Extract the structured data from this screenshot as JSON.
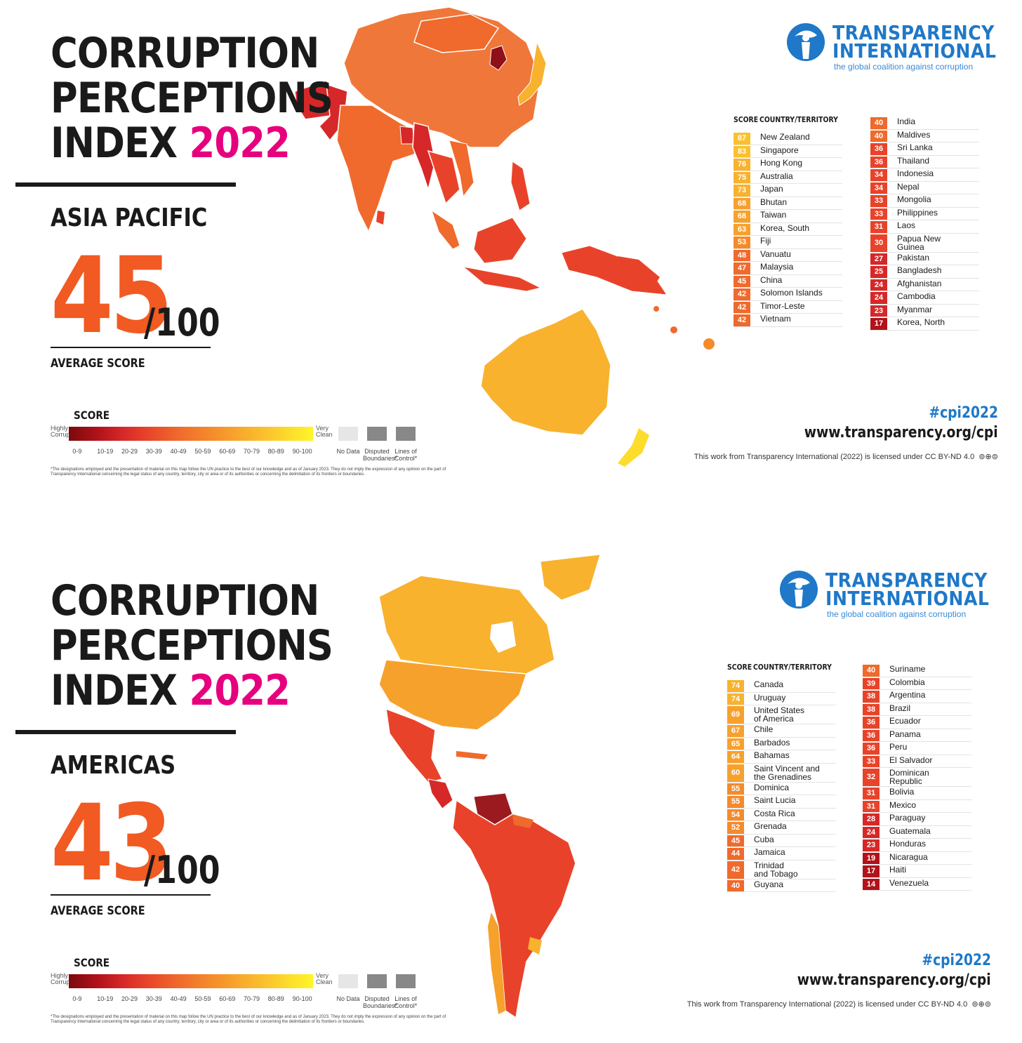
{
  "panels": [
    {
      "title_line1": "CORRUPTION",
      "title_line2": "PERCEPTIONS",
      "title_line3_prefix": "INDEX",
      "title_year": "2022",
      "region": "ASIA PACIFIC",
      "average_score": "45",
      "score_max": "/100",
      "average_label": "AVERAGE SCORE",
      "legend": {
        "title": "SCORE",
        "low_label": "Highly Corrupt",
        "high_label": "Very Clean",
        "ticks": [
          "0-9",
          "10-19",
          "20-29",
          "30-39",
          "40-49",
          "50-59",
          "60-69",
          "70-79",
          "80-89",
          "90-100"
        ],
        "no_data": "No Data",
        "disputed": "Disputed Boundaries*",
        "lines_of_control": "Lines of Control*",
        "footnote": "*The designations employed and the presentation of material on this map follow the UN practice to the best of our knowledge and as of January 2023. They do not imply the expression of any opinion on the part of Transparency International concerning the legal status of any country, territory, city or area or of its authorities or concerning the delimitation of its frontiers or boundaries."
      },
      "logo_line1": "TRANSPARENCY",
      "logo_line2": "INTERNATIONAL",
      "logo_tagline": "the global coalition against corruption",
      "col_score_header": "SCORE",
      "col_country_header": "COUNTRY/TERRITORY",
      "left_column": [
        {
          "score": "87",
          "name": "New Zealand",
          "color": "#fbc02d"
        },
        {
          "score": "83",
          "name": "Singapore",
          "color": "#fbc02d"
        },
        {
          "score": "76",
          "name": "Hong Kong",
          "color": "#f8b22e"
        },
        {
          "score": "75",
          "name": "Australia",
          "color": "#f8b22e"
        },
        {
          "score": "73",
          "name": "Japan",
          "color": "#f8b22e"
        },
        {
          "score": "68",
          "name": "Bhutan",
          "color": "#f7a12d"
        },
        {
          "score": "68",
          "name": "Taiwan",
          "color": "#f7a12d"
        },
        {
          "score": "63",
          "name": "Korea, South",
          "color": "#f7a12d"
        },
        {
          "score": "53",
          "name": "Fiji",
          "color": "#f58a2b"
        },
        {
          "score": "48",
          "name": "Vanuatu",
          "color": "#ef6a2c"
        },
        {
          "score": "47",
          "name": "Malaysia",
          "color": "#ef6a2c"
        },
        {
          "score": "45",
          "name": "China",
          "color": "#ef6a2c"
        },
        {
          "score": "42",
          "name": "Solomon Islands",
          "color": "#ef6a2c"
        },
        {
          "score": "42",
          "name": "Timor-Leste",
          "color": "#ef6a2c"
        },
        {
          "score": "42",
          "name": "Vietnam",
          "color": "#ef6a2c"
        }
      ],
      "right_column": [
        {
          "score": "40",
          "name": "India",
          "color": "#ef6a2c"
        },
        {
          "score": "40",
          "name": "Maldives",
          "color": "#ef6a2c"
        },
        {
          "score": "36",
          "name": "Sri Lanka",
          "color": "#e8432a"
        },
        {
          "score": "36",
          "name": "Thailand",
          "color": "#e8432a"
        },
        {
          "score": "34",
          "name": "Indonesia",
          "color": "#e8432a"
        },
        {
          "score": "34",
          "name": "Nepal",
          "color": "#e8432a"
        },
        {
          "score": "33",
          "name": "Mongolia",
          "color": "#e8432a"
        },
        {
          "score": "33",
          "name": "Philippines",
          "color": "#e8432a"
        },
        {
          "score": "31",
          "name": "Laos",
          "color": "#e8432a"
        },
        {
          "score": "30",
          "name": "Papua New\nGuinea",
          "color": "#e8432a"
        },
        {
          "score": "27",
          "name": "Pakistan",
          "color": "#d62828"
        },
        {
          "score": "25",
          "name": "Bangladesh",
          "color": "#d62828"
        },
        {
          "score": "24",
          "name": "Afghanistan",
          "color": "#d62828"
        },
        {
          "score": "24",
          "name": "Cambodia",
          "color": "#d62828"
        },
        {
          "score": "23",
          "name": "Myanmar",
          "color": "#d62828"
        },
        {
          "score": "17",
          "name": "Korea, North",
          "color": "#b2121a"
        }
      ],
      "hashtag": "#cpi2022",
      "url": "www.transparency.org/cpi",
      "license": "This work from Transparency International (2022) is licensed under CC BY-ND 4.0"
    },
    {
      "title_line1": "CORRUPTION",
      "title_line2": "PERCEPTIONS",
      "title_line3_prefix": "INDEX",
      "title_year": "2022",
      "region": "AMERICAS",
      "average_score": "43",
      "score_max": "/100",
      "average_label": "AVERAGE SCORE",
      "legend": {
        "title": "SCORE",
        "low_label": "Highly Corrupt",
        "high_label": "Very Clean",
        "ticks": [
          "0-9",
          "10-19",
          "20-29",
          "30-39",
          "40-49",
          "50-59",
          "60-69",
          "70-79",
          "80-89",
          "90-100"
        ],
        "no_data": "No Data",
        "disputed": "Disputed Boundaries*",
        "lines_of_control": "Lines of Control*",
        "footnote": "*The designations employed and the presentation of material on this map follow the UN practice to the best of our knowledge and as of January 2023. They do not imply the expression of any opinion on the part of Transparency International concerning the legal status of any country, territory, city or area or of its authorities or concerning the delimitation of its frontiers or boundaries."
      },
      "logo_line1": "TRANSPARENCY",
      "logo_line2": "INTERNATIONAL",
      "logo_tagline": "the global coalition against corruption",
      "col_score_header": "SCORE",
      "col_country_header": "COUNTRY/TERRITORY",
      "left_column": [
        {
          "score": "74",
          "name": "Canada",
          "color": "#f8b22e"
        },
        {
          "score": "74",
          "name": "Uruguay",
          "color": "#f8b22e"
        },
        {
          "score": "69",
          "name": "United States\nof America",
          "color": "#f7a12d"
        },
        {
          "score": "67",
          "name": "Chile",
          "color": "#f7a12d"
        },
        {
          "score": "65",
          "name": "Barbados",
          "color": "#f7a12d"
        },
        {
          "score": "64",
          "name": "Bahamas",
          "color": "#f7a12d"
        },
        {
          "score": "60",
          "name": "Saint Vincent and\nthe Grenadines",
          "color": "#f7a12d"
        },
        {
          "score": "55",
          "name": "Dominica",
          "color": "#f58a2b"
        },
        {
          "score": "55",
          "name": "Saint Lucia",
          "color": "#f58a2b"
        },
        {
          "score": "54",
          "name": "Costa Rica",
          "color": "#f58a2b"
        },
        {
          "score": "52",
          "name": "Grenada",
          "color": "#f58a2b"
        },
        {
          "score": "45",
          "name": "Cuba",
          "color": "#ef6a2c"
        },
        {
          "score": "44",
          "name": "Jamaica",
          "color": "#ef6a2c"
        },
        {
          "score": "42",
          "name": "Trinidad\nand Tobago",
          "color": "#ef6a2c"
        },
        {
          "score": "40",
          "name": "Guyana",
          "color": "#ef6a2c"
        }
      ],
      "right_column": [
        {
          "score": "40",
          "name": "Suriname",
          "color": "#ef6a2c"
        },
        {
          "score": "39",
          "name": "Colombia",
          "color": "#e8432a"
        },
        {
          "score": "38",
          "name": "Argentina",
          "color": "#e8432a"
        },
        {
          "score": "38",
          "name": "Brazil",
          "color": "#e8432a"
        },
        {
          "score": "36",
          "name": "Ecuador",
          "color": "#e8432a"
        },
        {
          "score": "36",
          "name": "Panama",
          "color": "#e8432a"
        },
        {
          "score": "36",
          "name": "Peru",
          "color": "#e8432a"
        },
        {
          "score": "33",
          "name": "El Salvador",
          "color": "#e8432a"
        },
        {
          "score": "32",
          "name": "Dominican\nRepublic",
          "color": "#e8432a"
        },
        {
          "score": "31",
          "name": "Bolivia",
          "color": "#e8432a"
        },
        {
          "score": "31",
          "name": "Mexico",
          "color": "#e8432a"
        },
        {
          "score": "28",
          "name": "Paraguay",
          "color": "#d62828"
        },
        {
          "score": "24",
          "name": "Guatemala",
          "color": "#d62828"
        },
        {
          "score": "23",
          "name": "Honduras",
          "color": "#d62828"
        },
        {
          "score": "19",
          "name": "Nicaragua",
          "color": "#b2121a"
        },
        {
          "score": "17",
          "name": "Haiti",
          "color": "#b2121a"
        },
        {
          "score": "14",
          "name": "Venezuela",
          "color": "#b2121a"
        }
      ],
      "hashtag": "#cpi2022",
      "url": "www.transparency.org/cpi",
      "license": "This work from Transparency International (2022) is licensed under CC BY-ND 4.0"
    }
  ]
}
